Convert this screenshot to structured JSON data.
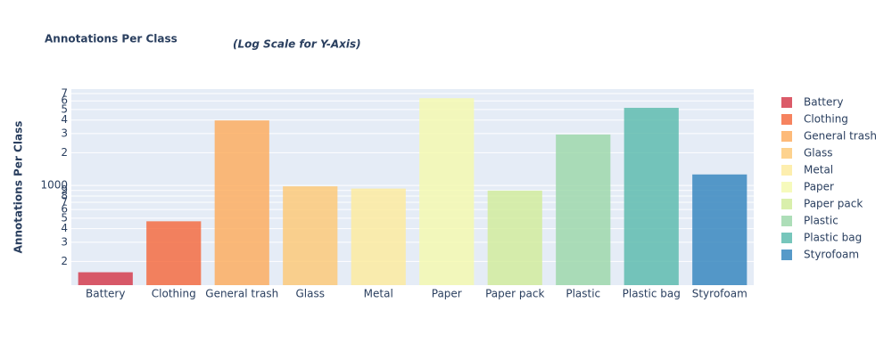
{
  "chart_data": {
    "type": "bar",
    "title": "Annotations Per Class",
    "subtitle": "(Log Scale for Y-Axis)",
    "y_label": "Annotations Per Class",
    "log_y": true,
    "grid": true,
    "legend": "right",
    "categories": [
      "Battery",
      "Clothing",
      "General trash",
      "Glass",
      "Metal",
      "Paper",
      "Paper pack",
      "Plastic",
      "Plastic bag",
      "Styrofoam"
    ],
    "values": [
      159,
      468,
      3966,
      982,
      936,
      6352,
      897,
      2943,
      5178,
      1263
    ],
    "colors": [
      "#d53e4f",
      "#f46d43",
      "#fdae61",
      "#fdca7a",
      "#fdeba0",
      "#f5f9b0",
      "#d2ec9e",
      "#9fd8ac",
      "#5fbcaf",
      "#3a88c0"
    ],
    "ylim": [
      121,
      7700
    ],
    "yticks": [
      {
        "value": 200,
        "label": "2"
      },
      {
        "value": 300,
        "label": "3"
      },
      {
        "value": 400,
        "label": "4"
      },
      {
        "value": 500,
        "label": "5"
      },
      {
        "value": 600,
        "label": "6"
      },
      {
        "value": 700,
        "label": "7"
      },
      {
        "value": 800,
        "label": "8"
      },
      {
        "value": 900,
        "label": "9"
      },
      1000,
      {
        "value": 2000,
        "label": "2"
      },
      {
        "value": 3000,
        "label": "3"
      },
      {
        "value": 4000,
        "label": "4"
      },
      {
        "value": 5000,
        "label": "5"
      },
      {
        "value": 6000,
        "label": "6"
      },
      {
        "value": 7000,
        "label": "7"
      }
    ]
  }
}
